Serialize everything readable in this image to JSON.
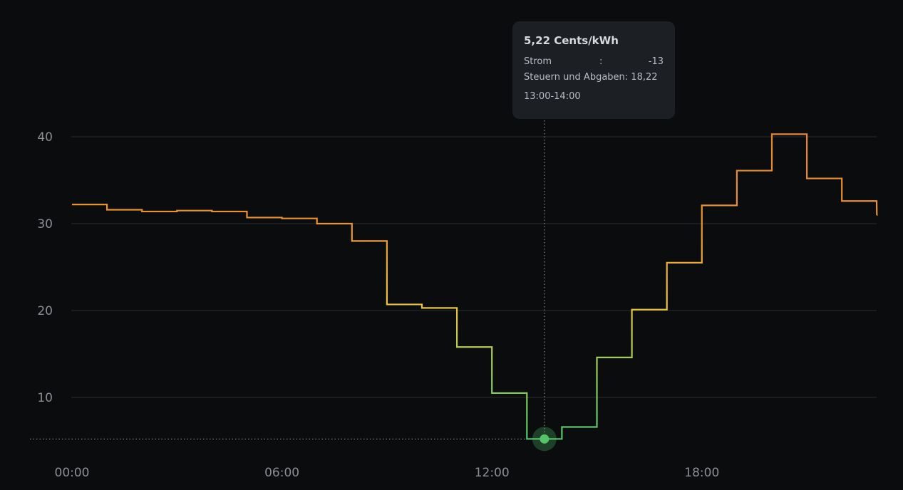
{
  "chart_data": {
    "type": "line",
    "step": true,
    "x_ticks": [
      "00:00",
      "06:00",
      "12:00",
      "18:00"
    ],
    "y_ticks": [
      10,
      20,
      30,
      40
    ],
    "ylim": [
      0,
      47
    ],
    "xlim": [
      0,
      23.5
    ],
    "grid": true,
    "series": [
      {
        "hours": [
          0,
          1,
          2,
          3,
          4,
          5,
          6,
          7,
          8,
          9,
          10,
          11,
          12,
          13,
          14,
          15,
          16,
          17,
          18,
          19,
          20,
          21,
          22,
          23
        ],
        "values": [
          32.2,
          31.6,
          31.4,
          31.5,
          31.4,
          30.7,
          30.6,
          30.0,
          28.0,
          20.7,
          20.3,
          15.8,
          10.5,
          5.22,
          6.6,
          14.6,
          20.1,
          25.5,
          32.1,
          36.1,
          40.3,
          35.2,
          32.6,
          31.0
        ]
      }
    ],
    "colors": {
      "high": "#e8852f",
      "mid": "#f0c33c",
      "low": "#54c46b"
    },
    "highlight": {
      "index": 13,
      "color": "#54c46b"
    }
  },
  "tooltip": {
    "title": "5,22 Cents/kWh",
    "rows": [
      {
        "label": "Strom",
        "colon": ":",
        "value": "-13"
      }
    ],
    "row_full": "Steuern und Abgaben: 18,22",
    "time": "13:00-14:00"
  }
}
